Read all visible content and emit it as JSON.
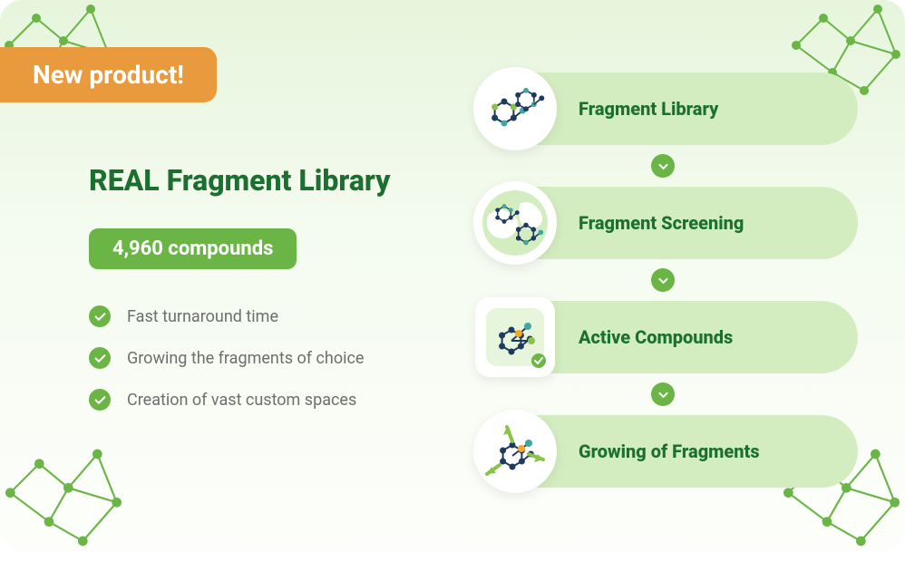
{
  "colors": {
    "badge_bg": "#e89a3c",
    "badge_text": "#ffffff",
    "title": "#1b6f2f",
    "pill_bg": "#6ab545",
    "pill_text": "#ffffff",
    "check_bg": "#6ab545",
    "check_fg": "#ffffff",
    "feature_text": "#6e6e6e",
    "step_bg": "#d3edc0",
    "step_label": "#1b6f2f",
    "arrow_bg": "#6ab545",
    "arrow_fg": "#ffffff",
    "decor": "#6ab545",
    "molecule_dark": "#1e3a5f",
    "molecule_teal": "#3fa7a0",
    "molecule_green": "#8bc34a",
    "molecule_orange": "#f5a623"
  },
  "badge": {
    "label": "New product!"
  },
  "title": "REAL Fragment Library",
  "compounds_pill": "4,960 compounds",
  "features": [
    {
      "label": "Fast turnaround time"
    },
    {
      "label": "Growing the fragments of choice"
    },
    {
      "label": "Creation of vast custom spaces"
    }
  ],
  "steps": [
    {
      "label": "Fragment Library",
      "icon": "molecule-pair"
    },
    {
      "label": "Fragment Screening",
      "icon": "molecule-globe"
    },
    {
      "label": "Active Compounds",
      "icon": "molecule-badge",
      "shape": "rounded"
    },
    {
      "label": "Growing of Fragments",
      "icon": "molecule-arrows"
    }
  ]
}
